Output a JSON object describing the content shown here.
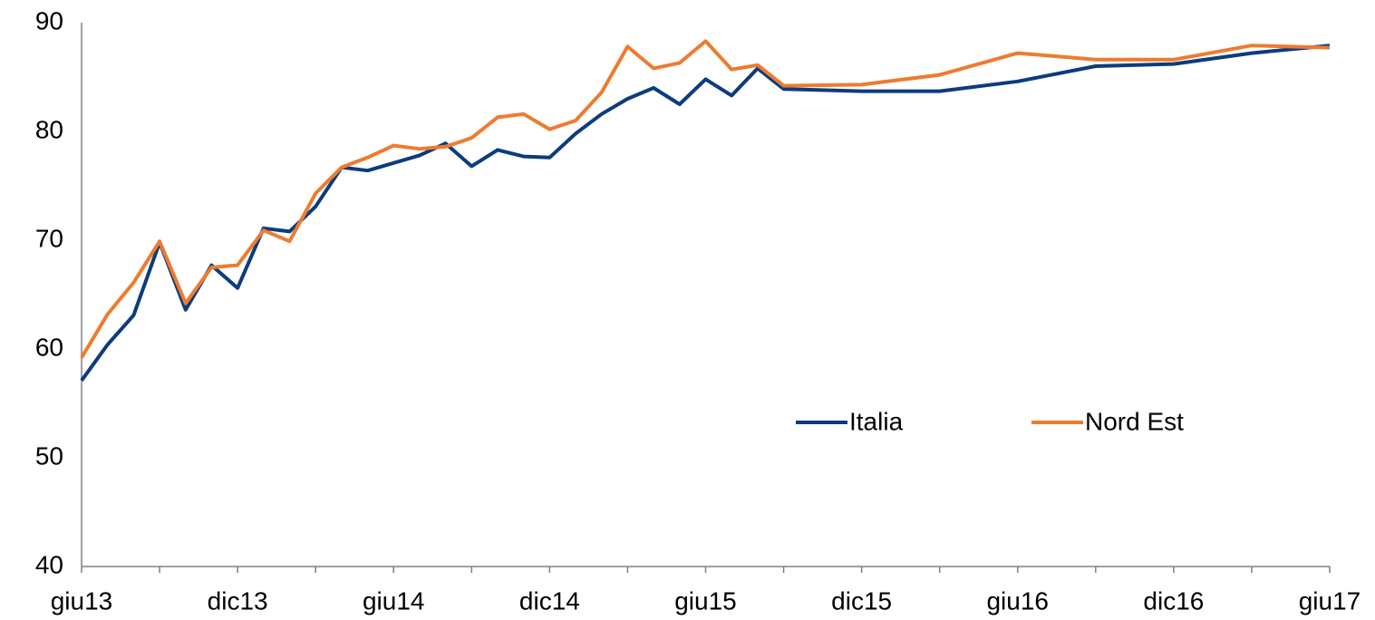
{
  "chart_data": {
    "type": "line",
    "x": [
      "2013-06",
      "2013-07",
      "2013-08",
      "2013-09",
      "2013-10",
      "2013-11",
      "2013-12",
      "2014-01",
      "2014-02",
      "2014-03",
      "2014-04",
      "2014-05",
      "2014-06",
      "2014-07",
      "2014-08",
      "2014-09",
      "2014-10",
      "2014-11",
      "2014-12",
      "2015-01",
      "2015-02",
      "2015-03",
      "2015-04",
      "2015-05",
      "2015-06",
      "2015-07",
      "2015-08",
      "2015-09",
      "2015-12",
      "2016-03",
      "2016-06",
      "2016-09",
      "2016-12",
      "2017-03",
      "2017-06"
    ],
    "series": [
      {
        "name": "Italia",
        "color": "#0b3c7d",
        "values": [
          57.1,
          60.4,
          63.1,
          69.8,
          63.6,
          67.7,
          65.6,
          71.1,
          70.8,
          73.1,
          76.7,
          76.4,
          77.1,
          77.8,
          78.9,
          76.8,
          78.3,
          77.7,
          77.6,
          79.8,
          81.6,
          83.0,
          84.0,
          82.5,
          84.8,
          83.3,
          85.8,
          83.9,
          83.7,
          83.7,
          84.6,
          86.0,
          86.2,
          87.2,
          87.9
        ]
      },
      {
        "name": "Nord Est",
        "color": "#ee7b30",
        "values": [
          59.2,
          63.2,
          66.1,
          69.9,
          64.2,
          67.5,
          67.7,
          70.9,
          69.9,
          74.3,
          76.7,
          77.6,
          78.7,
          78.4,
          78.6,
          79.4,
          81.3,
          81.6,
          80.2,
          81.0,
          83.6,
          87.8,
          85.8,
          86.3,
          88.3,
          85.7,
          86.1,
          84.2,
          84.3,
          85.2,
          87.2,
          86.6,
          86.6,
          87.9,
          87.7
        ]
      }
    ],
    "xlim": [
      "2013-06",
      "2017-06"
    ],
    "xticks": [
      {
        "value": "2013-06",
        "label": "giu13"
      },
      {
        "value": "2013-12",
        "label": "dic13"
      },
      {
        "value": "2014-06",
        "label": "giu14"
      },
      {
        "value": "2014-12",
        "label": "dic14"
      },
      {
        "value": "2015-06",
        "label": "giu15"
      },
      {
        "value": "2015-12",
        "label": "dic15"
      },
      {
        "value": "2016-06",
        "label": "giu16"
      },
      {
        "value": "2016-12",
        "label": "dic16"
      },
      {
        "value": "2017-06",
        "label": "giu17"
      }
    ],
    "ylim": [
      40,
      90
    ],
    "yticks": [
      40,
      50,
      60,
      70,
      80,
      90
    ],
    "grid": false
  }
}
